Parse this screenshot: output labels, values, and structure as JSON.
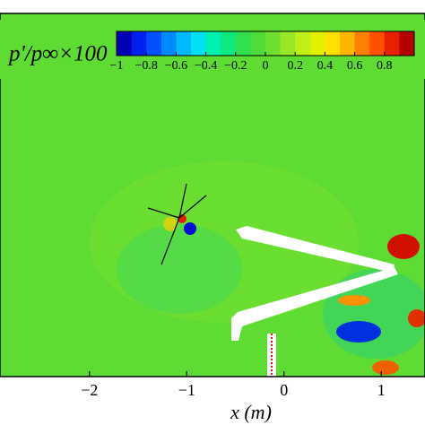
{
  "chart_data": {
    "type": "contour",
    "colorbar_label": "p'/p∞×100",
    "x_label": "x (m)",
    "xlim": [
      -2.92,
      1.45
    ],
    "xticks": [
      {
        "value": -2,
        "label": "−2"
      },
      {
        "value": -1,
        "label": "−1"
      },
      0,
      1
    ],
    "colorbar_lim": [
      -1,
      1
    ],
    "colorbar_ticks": [
      {
        "value": -1,
        "label": "−1"
      },
      {
        "value": -0.8,
        "label": "−0.8"
      },
      {
        "value": -0.6,
        "label": "−0.6"
      },
      {
        "value": -0.4,
        "label": "−0.4"
      },
      {
        "value": -0.2,
        "label": "−0.2"
      },
      0,
      0.2,
      0.4,
      0.6,
      0.8
    ],
    "colorbar_colors": [
      "#0000b4",
      "#0020f0",
      "#0050ff",
      "#0088ff",
      "#00b8ff",
      "#00e0f0",
      "#00f0b0",
      "#10e880",
      "#30e050",
      "#50dc38",
      "#70e030",
      "#98e828",
      "#c0f018",
      "#e0f000",
      "#ffe000",
      "#ffb400",
      "#ff8000",
      "#ff5000",
      "#e82000",
      "#b40000"
    ]
  }
}
